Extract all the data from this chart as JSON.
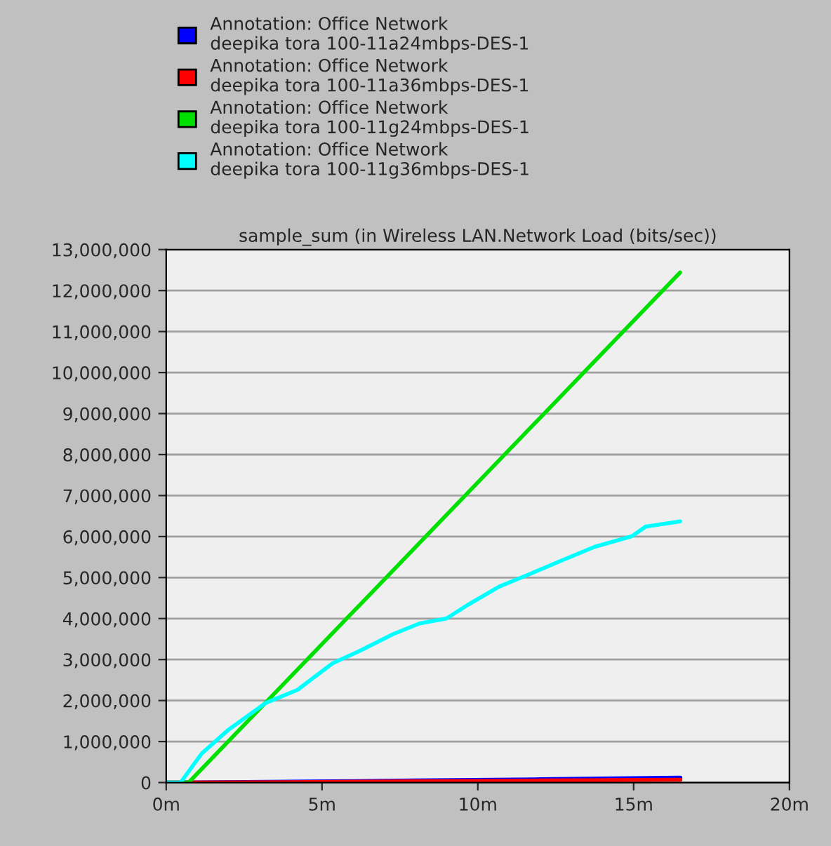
{
  "chart_data": {
    "type": "line",
    "title": "sample_sum (in Wireless LAN.Network Load (bits/sec))",
    "series": [
      {
        "name": "Annotation: Office Network\ndeepika tora 100-11a24mbps-DES-1",
        "color": "#0000ff",
        "x": [
          0,
          4,
          8,
          12,
          16.5
        ],
        "values": [
          0,
          20000,
          50000,
          80000,
          120000
        ]
      },
      {
        "name": "Annotation: Office Network\ndeepika tora 100-11a36mbps-DES-1",
        "color": "#ff0000",
        "x": [
          0,
          4,
          8,
          12,
          16.5
        ],
        "values": [
          0,
          10000,
          30000,
          50000,
          70000
        ]
      },
      {
        "name": "Annotation: Office Network\ndeepika tora 100-11g24mbps-DES-1",
        "color": "#00e000",
        "x": [
          0,
          0.72,
          16.49
        ],
        "values": [
          0,
          0,
          12440000
        ]
      },
      {
        "name": "Annotation: Office Network\ndeepika tora 100-11g36mbps-DES-1",
        "color": "#00ffff",
        "x": [
          0,
          0.46,
          1.14,
          2.0,
          3.19,
          4.21,
          5.34,
          6.26,
          7.28,
          8.13,
          8.99,
          9.67,
          10.69,
          11.71,
          12.73,
          13.75,
          14.95,
          15.38,
          16.49
        ],
        "values": [
          0,
          0,
          710000,
          1290000,
          1940000,
          2260000,
          2910000,
          3230000,
          3620000,
          3880000,
          4000000,
          4330000,
          4780000,
          5100000,
          5430000,
          5750000,
          6010000,
          6240000,
          6370000
        ]
      }
    ],
    "xlim": [
      0,
      20
    ],
    "xticks": [
      {
        "value": 0,
        "label": "0m"
      },
      {
        "value": 5,
        "label": "5m"
      },
      {
        "value": 10,
        "label": "10m"
      },
      {
        "value": 15,
        "label": "15m"
      },
      {
        "value": 20,
        "label": "20m"
      }
    ],
    "ylim": [
      0,
      13000000
    ],
    "yticks": [
      {
        "value": 0,
        "label": "0"
      },
      {
        "value": 1000000,
        "label": "1,000,000"
      },
      {
        "value": 2000000,
        "label": "2,000,000"
      },
      {
        "value": 3000000,
        "label": "3,000,000"
      },
      {
        "value": 4000000,
        "label": "4,000,000"
      },
      {
        "value": 5000000,
        "label": "5,000,000"
      },
      {
        "value": 6000000,
        "label": "6,000,000"
      },
      {
        "value": 7000000,
        "label": "7,000,000"
      },
      {
        "value": 8000000,
        "label": "8,000,000"
      },
      {
        "value": 9000000,
        "label": "9,000,000"
      },
      {
        "value": 10000000,
        "label": "10,000,000"
      },
      {
        "value": 11000000,
        "label": "11,000,000"
      },
      {
        "value": 12000000,
        "label": "12,000,000"
      },
      {
        "value": 13000000,
        "label": "13,000,000"
      }
    ],
    "grid": "y",
    "legend": "top",
    "marker": "none",
    "line_style": "solid"
  }
}
